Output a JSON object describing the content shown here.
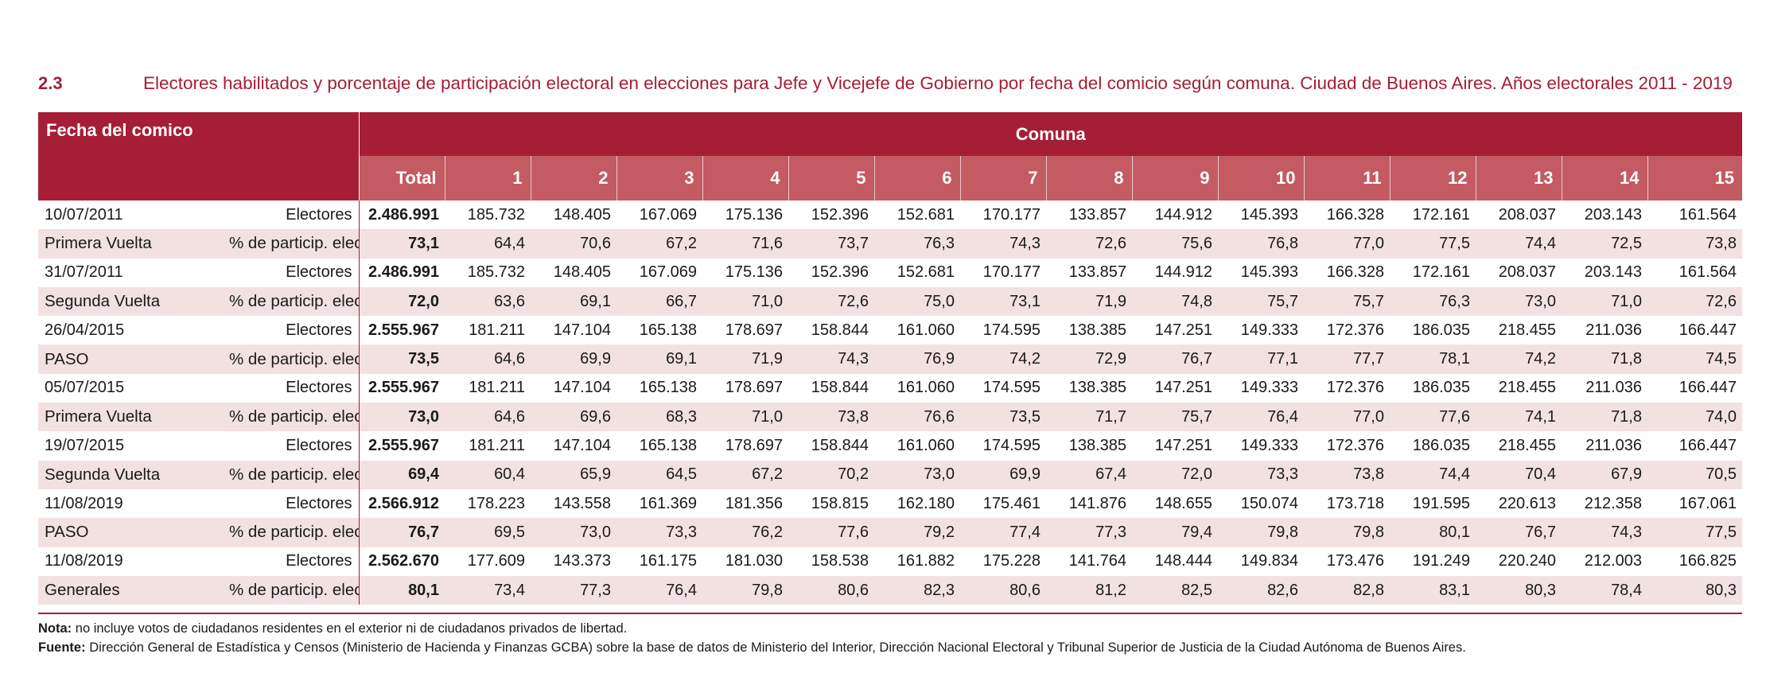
{
  "title": {
    "number": "2.3",
    "text": "Electores habilitados y porcentaje de participación electoral en elecciones para Jefe y Vicejefe de Gobierno por fecha del comicio según comuna. Ciudad de Buenos Aires. Años electorales 2011 - 2019"
  },
  "header": {
    "fecha": "Fecha del comico",
    "comuna": "Comuna",
    "columns": [
      "Total",
      "1",
      "2",
      "3",
      "4",
      "5",
      "6",
      "7",
      "8",
      "9",
      "10",
      "11",
      "12",
      "13",
      "14",
      "15"
    ]
  },
  "rows": [
    {
      "label1": "10/07/2011",
      "label2": "Electores",
      "values": [
        "2.486.991",
        "185.732",
        "148.405",
        "167.069",
        "175.136",
        "152.396",
        "152.681",
        "170.177",
        "133.857",
        "144.912",
        "145.393",
        "166.328",
        "172.161",
        "208.037",
        "203.143",
        "161.564"
      ]
    },
    {
      "label1": "Primera Vuelta",
      "label2": "% de particip. electoral",
      "values": [
        "73,1",
        "64,4",
        "70,6",
        "67,2",
        "71,6",
        "73,7",
        "76,3",
        "74,3",
        "72,6",
        "75,6",
        "76,8",
        "77,0",
        "77,5",
        "74,4",
        "72,5",
        "73,8"
      ]
    },
    {
      "label1": "31/07/2011",
      "label2": "Electores",
      "values": [
        "2.486.991",
        "185.732",
        "148.405",
        "167.069",
        "175.136",
        "152.396",
        "152.681",
        "170.177",
        "133.857",
        "144.912",
        "145.393",
        "166.328",
        "172.161",
        "208.037",
        "203.143",
        "161.564"
      ]
    },
    {
      "label1": "Segunda Vuelta",
      "label2": "% de particip. electoral",
      "values": [
        "72,0",
        "63,6",
        "69,1",
        "66,7",
        "71,0",
        "72,6",
        "75,0",
        "73,1",
        "71,9",
        "74,8",
        "75,7",
        "75,7",
        "76,3",
        "73,0",
        "71,0",
        "72,6"
      ]
    },
    {
      "label1": "26/04/2015",
      "label2": "Electores",
      "values": [
        "2.555.967",
        "181.211",
        "147.104",
        "165.138",
        "178.697",
        "158.844",
        "161.060",
        "174.595",
        "138.385",
        "147.251",
        "149.333",
        "172.376",
        "186.035",
        "218.455",
        "211.036",
        "166.447"
      ]
    },
    {
      "label1": "PASO",
      "label2": "% de particip. electoral",
      "values": [
        "73,5",
        "64,6",
        "69,9",
        "69,1",
        "71,9",
        "74,3",
        "76,9",
        "74,2",
        "72,9",
        "76,7",
        "77,1",
        "77,7",
        "78,1",
        "74,2",
        "71,8",
        "74,5"
      ]
    },
    {
      "label1": "05/07/2015",
      "label2": "Electores",
      "values": [
        "2.555.967",
        "181.211",
        "147.104",
        "165.138",
        "178.697",
        "158.844",
        "161.060",
        "174.595",
        "138.385",
        "147.251",
        "149.333",
        "172.376",
        "186.035",
        "218.455",
        "211.036",
        "166.447"
      ]
    },
    {
      "label1": "Primera Vuelta",
      "label2": "% de particip. electoral",
      "values": [
        "73,0",
        "64,6",
        "69,6",
        "68,3",
        "71,0",
        "73,8",
        "76,6",
        "73,5",
        "71,7",
        "75,7",
        "76,4",
        "77,0",
        "77,6",
        "74,1",
        "71,8",
        "74,0"
      ]
    },
    {
      "label1": "19/07/2015",
      "label2": "Electores",
      "values": [
        "2.555.967",
        "181.211",
        "147.104",
        "165.138",
        "178.697",
        "158.844",
        "161.060",
        "174.595",
        "138.385",
        "147.251",
        "149.333",
        "172.376",
        "186.035",
        "218.455",
        "211.036",
        "166.447"
      ]
    },
    {
      "label1": "Segunda Vuelta",
      "label2": "% de particip. electoral",
      "values": [
        "69,4",
        "60,4",
        "65,9",
        "64,5",
        "67,2",
        "70,2",
        "73,0",
        "69,9",
        "67,4",
        "72,0",
        "73,3",
        "73,8",
        "74,4",
        "70,4",
        "67,9",
        "70,5"
      ]
    },
    {
      "label1": "11/08/2019",
      "label2": "Electores",
      "values": [
        "2.566.912",
        "178.223",
        "143.558",
        "161.369",
        "181.356",
        "158.815",
        "162.180",
        "175.461",
        "141.876",
        "148.655",
        "150.074",
        "173.718",
        "191.595",
        "220.613",
        "212.358",
        "167.061"
      ]
    },
    {
      "label1": "PASO",
      "label2": "% de particip. electoral",
      "values": [
        "76,7",
        "69,5",
        "73,0",
        "73,3",
        "76,2",
        "77,6",
        "79,2",
        "77,4",
        "77,3",
        "79,4",
        "79,8",
        "79,8",
        "80,1",
        "76,7",
        "74,3",
        "77,5"
      ]
    },
    {
      "label1": "11/08/2019",
      "label2": "Electores",
      "values": [
        "2.562.670",
        "177.609",
        "143.373",
        "161.175",
        "181.030",
        "158.538",
        "161.882",
        "175.228",
        "141.764",
        "148.444",
        "149.834",
        "173.476",
        "191.249",
        "220.240",
        "212.003",
        "166.825"
      ]
    },
    {
      "label1": "Generales",
      "label2": "% de particip. electoral",
      "values": [
        "80,1",
        "73,4",
        "77,3",
        "76,4",
        "79,8",
        "80,6",
        "82,3",
        "80,6",
        "81,2",
        "82,5",
        "82,6",
        "82,8",
        "83,1",
        "80,3",
        "78,4",
        "80,3"
      ]
    }
  ],
  "notes": {
    "nota_label": "Nota:",
    "nota_text": "no incluye votos de ciudadanos residentes en el exterior ni de ciudadanos privados de libertad.",
    "fuente_label": "Fuente:",
    "fuente_text": "Dirección General de Estadística y Censos (Ministerio de Hacienda y Finanzas GCBA) sobre la base de datos de Ministerio del Interior, Dirección Nacional Electoral y Tribunal Superior de Justicia de la Ciudad Autónoma de Buenos Aires."
  },
  "colors": {
    "brand": "#a51e36",
    "subheader": "#c45a62",
    "stripe": "#f3e1e2"
  }
}
